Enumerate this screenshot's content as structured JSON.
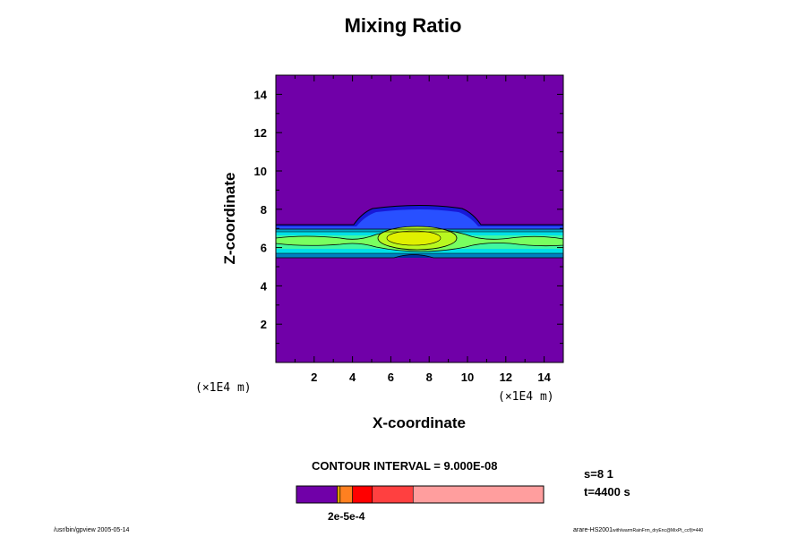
{
  "chart_data": {
    "type": "contour",
    "title": "Mixing Ratio",
    "xlabel": "X-coordinate",
    "ylabel": "Z-coordinate",
    "x_unit": "(×1E4 m)",
    "y_unit": "(×1E4 m)",
    "xlim": [
      0,
      15
    ],
    "ylim": [
      0,
      15
    ],
    "x_ticks": [
      2,
      4,
      6,
      8,
      10,
      12,
      14
    ],
    "y_ticks": [
      2,
      4,
      6,
      8,
      10,
      12,
      14
    ],
    "x_tick_labels": [
      "2",
      "4",
      "6",
      "8",
      "10",
      "12",
      "14"
    ],
    "y_tick_labels": [
      "2",
      "4",
      "6",
      "8",
      "10",
      "12",
      "14"
    ],
    "background_color": "#7000a8",
    "contour_interval_label": "CONTOUR INTERVAL = 9.000E-08",
    "colorbar": {
      "colors": [
        "#7000a8",
        "#e0a000",
        "#ff8020",
        "#ff0000",
        "#ff4040",
        "#ff9e9e"
      ],
      "fractions": [
        0.165,
        0.012,
        0.05,
        0.08,
        0.165,
        0.528
      ],
      "labels_text": "2e-5e-4"
    }
  },
  "status": {
    "step": "s=8 1",
    "time": "t=4400 s"
  },
  "footer": {
    "left": "/usr/bin/gpview 2005-05-14",
    "right_main": "arare-HS2001",
    "right_small": "with/warmRainFrm_dryEnc@MixPt_ccf(t=440"
  }
}
